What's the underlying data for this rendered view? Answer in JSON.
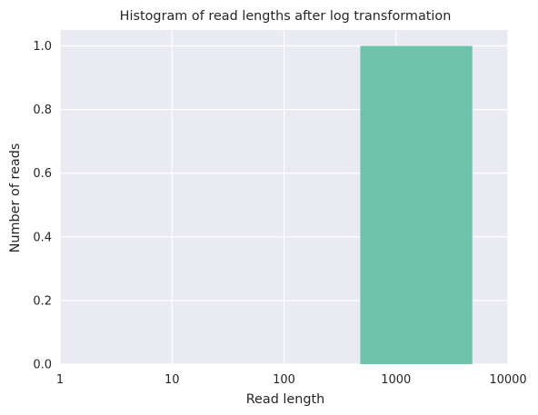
{
  "chart_data": {
    "type": "bar",
    "title": "Histogram of read lengths after log transformation",
    "xlabel": "Read length",
    "ylabel": "Number of reads",
    "x_scale": "log",
    "xlim": [
      1,
      10000
    ],
    "ylim": [
      0,
      1.05
    ],
    "x_ticks": [
      1,
      10,
      100,
      1000,
      10000
    ],
    "x_tick_labels": [
      "1",
      "10",
      "100",
      "1000",
      "10000"
    ],
    "y_ticks": [
      0.0,
      0.2,
      0.4,
      0.6,
      0.8,
      1.0
    ],
    "y_tick_labels": [
      "0.0",
      "0.2",
      "0.4",
      "0.6",
      "0.8",
      "1.0"
    ],
    "grid": true,
    "bins": [
      {
        "x_start": 480,
        "x_end": 4800,
        "count": 1
      }
    ],
    "bar_color": "#66c2a5",
    "background_color": "#eaeaf2"
  }
}
